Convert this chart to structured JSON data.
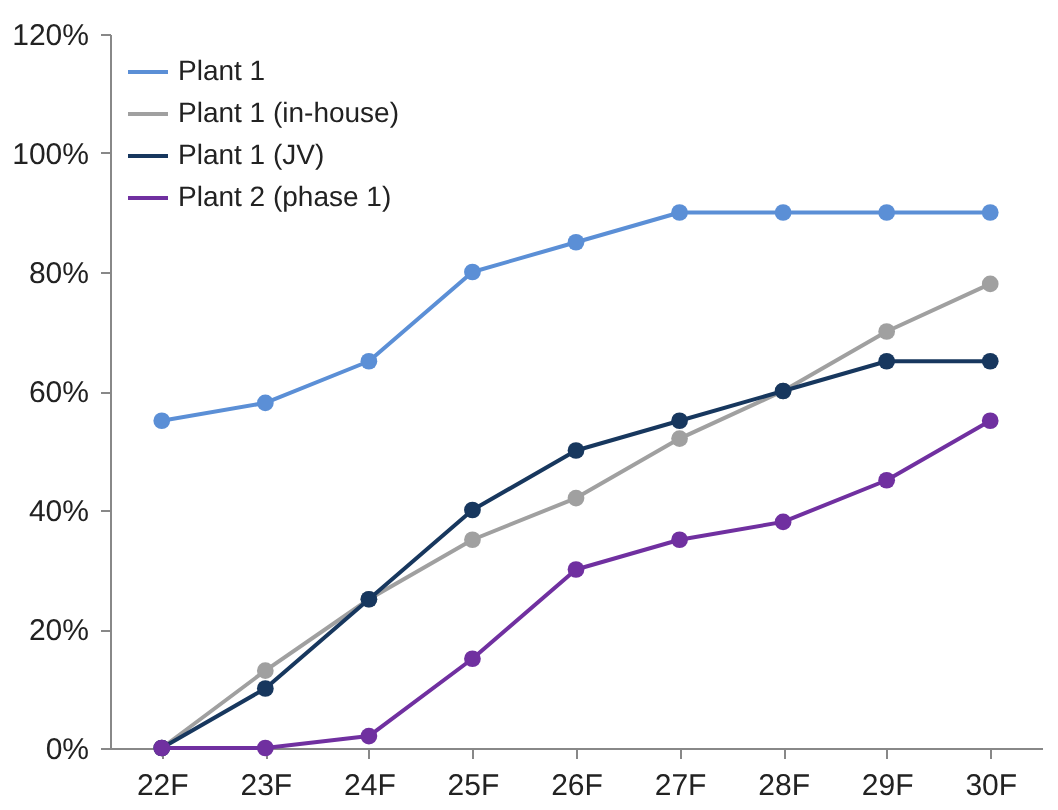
{
  "chart_data": {
    "type": "line",
    "categories": [
      "22F",
      "23F",
      "24F",
      "25F",
      "26F",
      "27F",
      "28F",
      "29F",
      "30F"
    ],
    "series": [
      {
        "name": "Plant 1",
        "color": "#5b8fd6",
        "values": [
          55,
          58,
          65,
          80,
          85,
          90,
          90,
          90,
          90
        ]
      },
      {
        "name": "Plant 1 (in-house)",
        "color": "#a0a0a0",
        "values": [
          0,
          13,
          25,
          35,
          42,
          52,
          60,
          70,
          78
        ]
      },
      {
        "name": "Plant 1 (JV)",
        "color": "#17375e",
        "values": [
          0,
          10,
          25,
          40,
          50,
          55,
          60,
          65,
          65
        ]
      },
      {
        "name": "Plant 2 (phase 1)",
        "color": "#7030a0",
        "values": [
          0,
          0,
          2,
          15,
          30,
          35,
          38,
          45,
          55
        ]
      }
    ],
    "ylim": [
      0,
      120
    ],
    "yticks": [
      {
        "value": 0,
        "label": "0%"
      },
      {
        "value": 20,
        "label": "20%"
      },
      {
        "value": 40,
        "label": "40%"
      },
      {
        "value": 60,
        "label": "60%"
      },
      {
        "value": 80,
        "label": "80%"
      },
      {
        "value": 100,
        "label": "100%"
      },
      {
        "value": 120,
        "label": "120%"
      }
    ],
    "grid": false,
    "legend": "top left",
    "marker": "circle",
    "line_style": "solid"
  }
}
